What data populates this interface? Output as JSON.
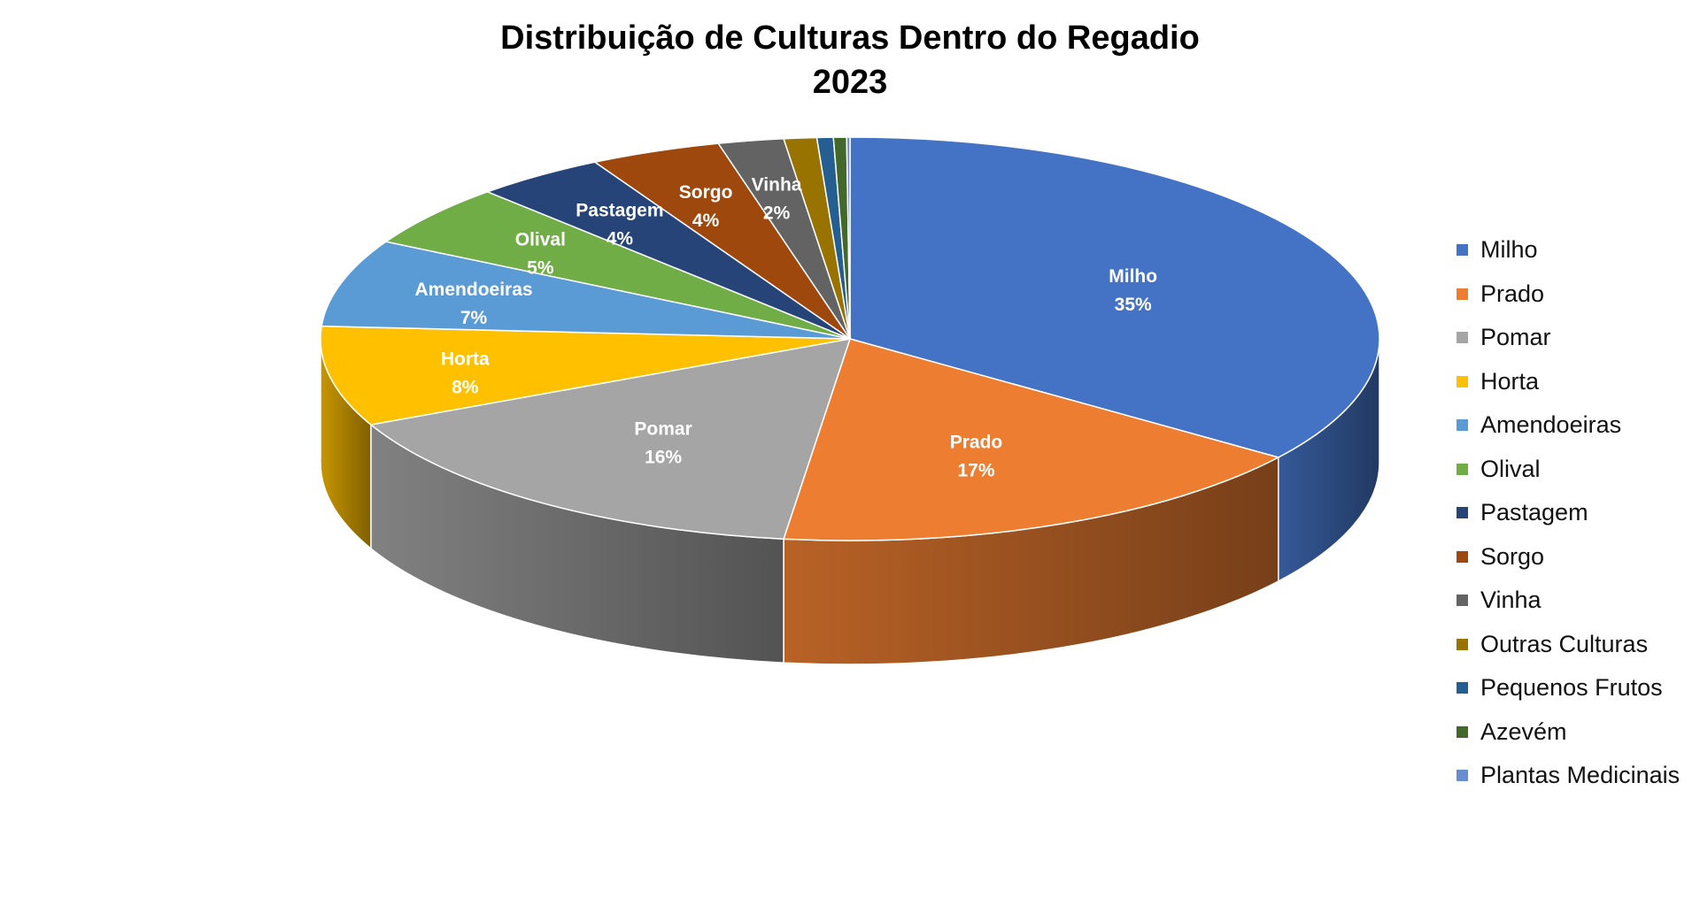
{
  "chart_data": {
    "type": "pie",
    "title": "Distribuição de Culturas Dentro do Regadio",
    "subtitle": "2023",
    "style": "3d",
    "legend_position": "right",
    "slices": [
      {
        "name": "Milho",
        "value": 35,
        "label": "35%",
        "color": "#4472C4"
      },
      {
        "name": "Prado",
        "value": 17,
        "label": "17%",
        "color": "#ED7D31"
      },
      {
        "name": "Pomar",
        "value": 16,
        "label": "16%",
        "color": "#A5A5A5"
      },
      {
        "name": "Horta",
        "value": 8,
        "label": "8%",
        "color": "#FFC000"
      },
      {
        "name": "Amendoeiras",
        "value": 7,
        "label": "7%",
        "color": "#5B9BD5"
      },
      {
        "name": "Olival",
        "value": 5,
        "label": "5%",
        "color": "#70AD47"
      },
      {
        "name": "Pastagem",
        "value": 4,
        "label": "4%",
        "color": "#264478"
      },
      {
        "name": "Sorgo",
        "value": 4,
        "label": "4%",
        "color": "#9E480E"
      },
      {
        "name": "Vinha",
        "value": 2,
        "label": "2%",
        "color": "#636363"
      },
      {
        "name": "Outras Culturas",
        "value": 1,
        "label": "",
        "color": "#997300"
      },
      {
        "name": "Pequenos Frutos",
        "value": 0.5,
        "label": "",
        "color": "#255E91"
      },
      {
        "name": "Azevém",
        "value": 0.4,
        "label": "",
        "color": "#43682B"
      },
      {
        "name": "Plantas Medicinais",
        "value": 0.1,
        "label": "",
        "color": "#698ED0"
      }
    ]
  }
}
